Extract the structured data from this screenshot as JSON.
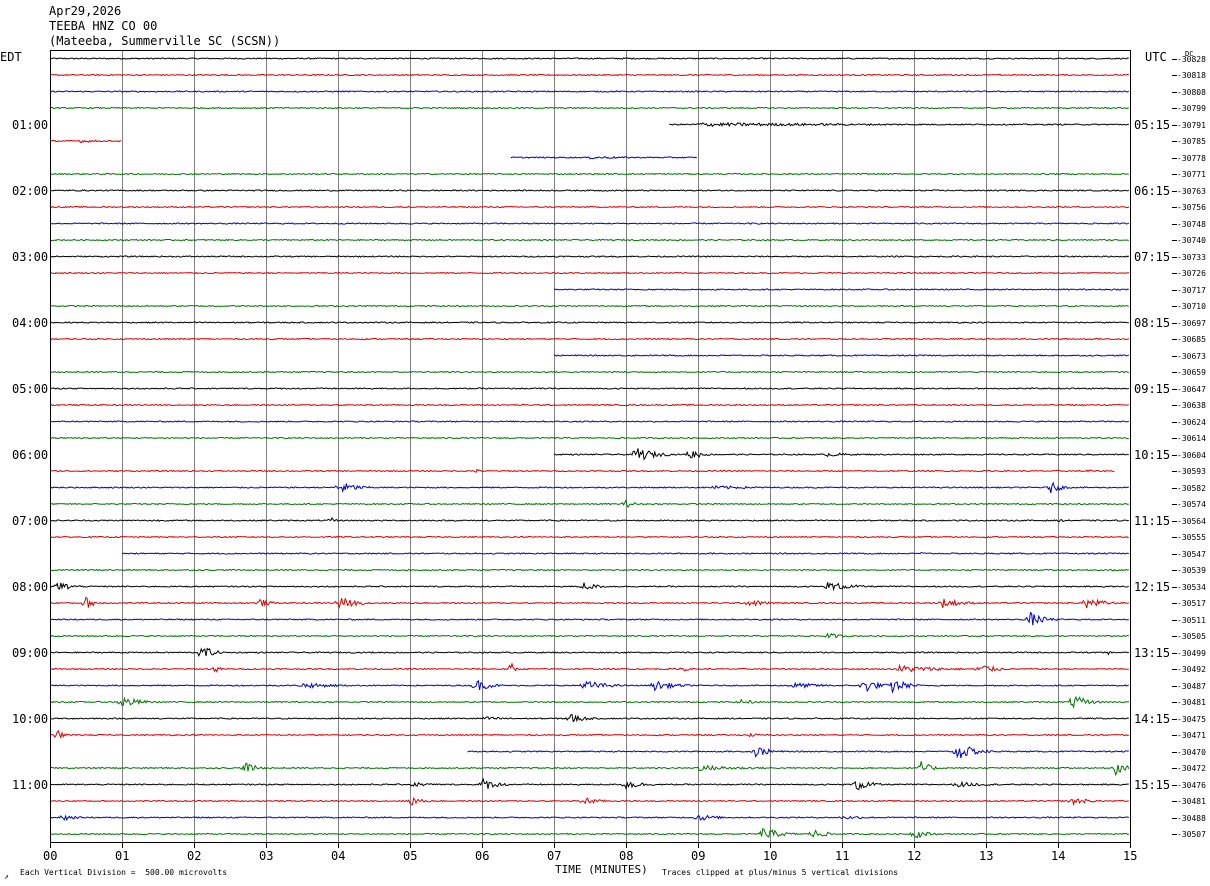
{
  "header": {
    "date": "Apr29,2026",
    "station": "TEEBA HNZ CO 00",
    "location": "(Mateeba, Summerville SC (SCSN))"
  },
  "left_tz": "EDT",
  "right_tz": "UTC",
  "dc_label": "DC",
  "footer": {
    "scale_note": "Each Vertical Division =  500.00 microvolts",
    "xlabel": "TIME (MINUTES)",
    "clip_note": "Traces clipped at plus/minus 5 vertical divisions"
  },
  "chart_data": {
    "type": "line",
    "title": "TEEBA HNZ CO 00",
    "xlabel": "TIME (MINUTES)",
    "xlim": [
      0,
      15
    ],
    "x_ticks": [
      "00",
      "01",
      "02",
      "03",
      "04",
      "05",
      "06",
      "07",
      "08",
      "09",
      "10",
      "11",
      "12",
      "13",
      "14",
      "15"
    ],
    "grid": true,
    "trace_colors": [
      "#000000",
      "#dd0000",
      "#0000cc",
      "#007700"
    ],
    "left_time_labels": [
      "01:00",
      "02:00",
      "03:00",
      "04:00",
      "05:00",
      "06:00",
      "07:00",
      "08:00",
      "09:00",
      "10:00",
      "11:00"
    ],
    "right_time_labels": [
      "05:15",
      "06:15",
      "07:15",
      "08:15",
      "09:15",
      "10:15",
      "11:15",
      "12:15",
      "13:15",
      "14:15",
      "15:15"
    ],
    "dc_offsets": [
      -30828,
      -30818,
      -30808,
      -30799,
      -30791,
      -30785,
      -30778,
      -30771,
      -30763,
      -30756,
      -30748,
      -30740,
      -30733,
      -30726,
      -30717,
      -30710,
      -30697,
      -30685,
      -30673,
      -30659,
      -30647,
      -30638,
      -30624,
      -30614,
      -30604,
      -30593,
      -30582,
      -30574,
      -30564,
      -30555,
      -30547,
      -30539,
      -30534,
      -30517,
      -30511,
      -30505,
      -30499,
      -30492,
      -30487,
      -30481,
      -30475,
      -30471,
      -30470,
      -30472,
      -30476,
      -30481,
      -30488,
      -30507
    ],
    "trace_start_minutes": [
      0,
      0,
      0,
      0,
      8.6,
      0,
      6.4,
      0,
      0,
      0,
      0,
      0,
      0,
      0,
      7,
      0,
      0,
      0,
      7,
      0,
      0,
      0,
      0,
      0,
      7,
      0,
      0,
      0,
      0,
      0,
      1,
      0,
      0,
      0,
      0,
      0,
      0,
      0,
      0,
      0,
      0,
      0,
      5.8,
      0,
      0,
      0,
      0,
      0
    ],
    "trace_end_minutes": [
      15,
      15,
      15,
      15,
      15,
      1,
      9,
      15,
      15,
      15,
      15,
      15,
      15,
      15,
      15,
      15,
      15,
      15,
      15,
      15,
      15,
      15,
      15,
      15,
      15,
      14.8,
      15,
      15,
      15,
      15,
      15,
      15,
      15,
      15,
      15,
      15,
      15,
      15,
      15,
      15,
      15,
      15,
      15,
      15,
      15,
      15,
      15,
      15
    ],
    "events": [
      {
        "trace": 0,
        "at": 8.0,
        "amp": 1,
        "dur": 0.4
      },
      {
        "trace": 0,
        "at": 14.7,
        "amp": 1,
        "dur": 0.1
      },
      {
        "trace": 4,
        "at": 9.0,
        "amp": 2,
        "dur": 6
      },
      {
        "trace": 5,
        "at": 0.4,
        "amp": 2,
        "dur": 0.6
      },
      {
        "trace": 6,
        "at": 7.5,
        "amp": 1.5,
        "dur": 1.5
      },
      {
        "trace": 24,
        "at": 8.15,
        "amp": 8,
        "dur": 0.5
      },
      {
        "trace": 24,
        "at": 8.9,
        "amp": 6,
        "dur": 0.3
      },
      {
        "trace": 24,
        "at": 10.8,
        "amp": 2.5,
        "dur": 0.6
      },
      {
        "trace": 25,
        "at": 5.9,
        "amp": 2.5,
        "dur": 0.2
      },
      {
        "trace": 25,
        "at": 14.4,
        "amp": 2,
        "dur": 0.2
      },
      {
        "trace": 26,
        "at": 4.0,
        "amp": 7,
        "dur": 0.5
      },
      {
        "trace": 26,
        "at": 13.9,
        "amp": 6,
        "dur": 0.3
      },
      {
        "trace": 26,
        "at": 9.2,
        "amp": 2,
        "dur": 1.5
      },
      {
        "trace": 27,
        "at": 8.0,
        "amp": 4,
        "dur": 0.3
      },
      {
        "trace": 28,
        "at": 1.4,
        "amp": 2,
        "dur": 0.3
      },
      {
        "trace": 28,
        "at": 3.9,
        "amp": 3,
        "dur": 0.2
      },
      {
        "trace": 28,
        "at": 14.0,
        "amp": 1.5,
        "dur": 0.3
      },
      {
        "trace": 30,
        "at": 12.1,
        "amp": 1.5,
        "dur": 0.2
      },
      {
        "trace": 31,
        "at": 14.8,
        "amp": 3,
        "dur": 0.2
      },
      {
        "trace": 32,
        "at": 0.1,
        "amp": 6,
        "dur": 0.4
      },
      {
        "trace": 32,
        "at": 7.4,
        "amp": 5,
        "dur": 0.4
      },
      {
        "trace": 32,
        "at": 10.8,
        "amp": 5,
        "dur": 0.7
      },
      {
        "trace": 33,
        "at": 0.5,
        "amp": 6,
        "dur": 0.3
      },
      {
        "trace": 33,
        "at": 2.9,
        "amp": 5,
        "dur": 0.3
      },
      {
        "trace": 33,
        "at": 4.0,
        "amp": 7,
        "dur": 0.5
      },
      {
        "trace": 33,
        "at": 9.7,
        "amp": 4,
        "dur": 0.5
      },
      {
        "trace": 33,
        "at": 12.4,
        "amp": 5,
        "dur": 0.6
      },
      {
        "trace": 33,
        "at": 14.4,
        "amp": 6,
        "dur": 0.5
      },
      {
        "trace": 34,
        "at": 13.6,
        "amp": 8,
        "dur": 0.4
      },
      {
        "trace": 35,
        "at": 10.8,
        "amp": 3,
        "dur": 0.5
      },
      {
        "trace": 36,
        "at": 2.1,
        "amp": 9,
        "dur": 0.3
      },
      {
        "trace": 36,
        "at": 14.7,
        "amp": 2,
        "dur": 0.1
      },
      {
        "trace": 37,
        "at": 2.3,
        "amp": 6,
        "dur": 0.1
      },
      {
        "trace": 37,
        "at": 6.4,
        "amp": 9,
        "dur": 0.1
      },
      {
        "trace": 37,
        "at": 8.8,
        "amp": 5,
        "dur": 0.1
      },
      {
        "trace": 37,
        "at": 11.8,
        "amp": 4,
        "dur": 1.2
      },
      {
        "trace": 37,
        "at": 12.9,
        "amp": 7,
        "dur": 0.4
      },
      {
        "trace": 38,
        "at": 5.9,
        "amp": 7,
        "dur": 0.4
      },
      {
        "trace": 38,
        "at": 7.4,
        "amp": 6,
        "dur": 0.6
      },
      {
        "trace": 38,
        "at": 8.4,
        "amp": 5,
        "dur": 0.6
      },
      {
        "trace": 38,
        "at": 11.3,
        "amp": 8,
        "dur": 0.4
      },
      {
        "trace": 38,
        "at": 11.7,
        "amp": 8,
        "dur": 0.4
      },
      {
        "trace": 38,
        "at": 3.5,
        "amp": 3,
        "dur": 1
      },
      {
        "trace": 38,
        "at": 10.3,
        "amp": 3,
        "dur": 1
      },
      {
        "trace": 39,
        "at": 1.0,
        "amp": 6,
        "dur": 0.5
      },
      {
        "trace": 39,
        "at": 9.6,
        "amp": 3,
        "dur": 0.4
      },
      {
        "trace": 39,
        "at": 14.2,
        "amp": 8,
        "dur": 0.4
      },
      {
        "trace": 40,
        "at": 7.2,
        "amp": 6,
        "dur": 0.4
      },
      {
        "trace": 40,
        "at": 6.0,
        "amp": 2,
        "dur": 1
      },
      {
        "trace": 41,
        "at": 0.1,
        "amp": 5,
        "dur": 0.2
      },
      {
        "trace": 41,
        "at": 9.7,
        "amp": 2,
        "dur": 0.4
      },
      {
        "trace": 42,
        "at": 9.8,
        "amp": 6,
        "dur": 0.4
      },
      {
        "trace": 42,
        "at": 12.6,
        "amp": 9,
        "dur": 0.5
      },
      {
        "trace": 43,
        "at": 2.7,
        "amp": 7,
        "dur": 0.3
      },
      {
        "trace": 43,
        "at": 12.1,
        "amp": 7,
        "dur": 0.3
      },
      {
        "trace": 43,
        "at": 14.8,
        "amp": 7,
        "dur": 0.3
      },
      {
        "trace": 43,
        "at": 9.0,
        "amp": 3,
        "dur": 1.5
      },
      {
        "trace": 44,
        "at": 5.0,
        "amp": 3,
        "dur": 0.6
      },
      {
        "trace": 44,
        "at": 6.0,
        "amp": 7,
        "dur": 0.4
      },
      {
        "trace": 44,
        "at": 8.0,
        "amp": 5,
        "dur": 0.5
      },
      {
        "trace": 44,
        "at": 11.2,
        "amp": 7,
        "dur": 0.4
      },
      {
        "trace": 44,
        "at": 12.6,
        "amp": 3,
        "dur": 0.8
      },
      {
        "trace": 45,
        "at": 5.0,
        "amp": 6,
        "dur": 0.3
      },
      {
        "trace": 45,
        "at": 7.4,
        "amp": 5,
        "dur": 0.4
      },
      {
        "trace": 45,
        "at": 14.2,
        "amp": 4,
        "dur": 0.5
      },
      {
        "trace": 46,
        "at": 0.2,
        "amp": 4,
        "dur": 0.3
      },
      {
        "trace": 46,
        "at": 9.0,
        "amp": 4,
        "dur": 0.5
      },
      {
        "trace": 46,
        "at": 11.0,
        "amp": 2,
        "dur": 1
      },
      {
        "trace": 47,
        "at": 9.9,
        "amp": 7,
        "dur": 0.5
      },
      {
        "trace": 47,
        "at": 10.6,
        "amp": 5,
        "dur": 0.4
      },
      {
        "trace": 47,
        "at": 12.0,
        "amp": 5,
        "dur": 0.4
      }
    ]
  }
}
